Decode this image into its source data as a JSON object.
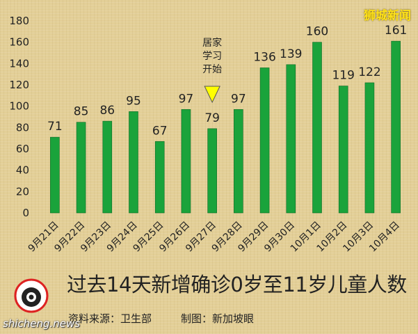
{
  "brand": "狮城新闻",
  "title": "过去14天新增确诊0岁至11岁儿童人数",
  "source": "资料来源：卫生部",
  "maker": "制图：新加坡眼",
  "website": "shicheng.news",
  "logo_text": "新加坡眼",
  "colors": {
    "bar": "#1aa33b",
    "marker": "#ffff00",
    "brand": "#ffe21a"
  },
  "chart_data": {
    "type": "bar",
    "categories": [
      "9月21日",
      "9月22日",
      "9月23日",
      "9月24日",
      "9月25日",
      "9月26日",
      "9月27日",
      "9月28日",
      "9月29日",
      "9月30日",
      "10月1日",
      "10月2日",
      "10月3日",
      "10月4日"
    ],
    "values": [
      71,
      85,
      86,
      95,
      67,
      97,
      79,
      97,
      136,
      139,
      160,
      119,
      122,
      161
    ],
    "title": "过去14天新增确诊0岁至11岁儿童人数",
    "xlabel": "",
    "ylabel": "",
    "ylim": [
      0,
      180
    ],
    "yticks": [
      0,
      20,
      40,
      60,
      80,
      100,
      120,
      140,
      160,
      180
    ],
    "grid": false,
    "legend": "none",
    "annotation": {
      "text_lines": [
        "居家",
        "学习",
        "开始"
      ],
      "category": "9月27日",
      "marker": "down-triangle"
    }
  }
}
